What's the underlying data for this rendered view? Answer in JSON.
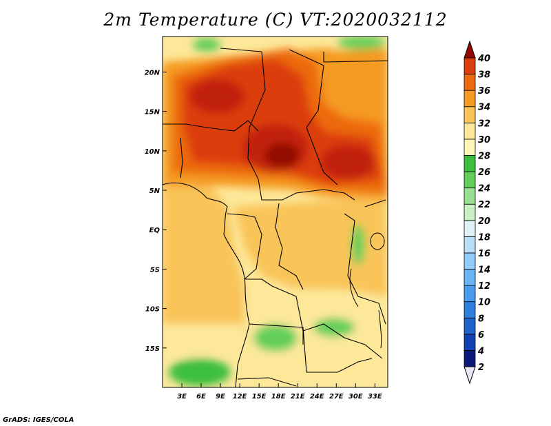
{
  "title": "2m Temperature (C) VT:2020032112",
  "credit": "GrADS: IGES/COLA",
  "map": {
    "lon_ticks": [
      "3E",
      "6E",
      "9E",
      "12E",
      "15E",
      "18E",
      "21E",
      "24E",
      "27E",
      "30E",
      "33E"
    ],
    "lat_ticks": [
      "20N",
      "15N",
      "10N",
      "5N",
      "EQ",
      "5S",
      "10S",
      "15S"
    ],
    "lon_range": [
      0,
      35
    ],
    "lat_range": [
      -20,
      24.5
    ]
  },
  "colorbar": {
    "levels": [
      2,
      4,
      6,
      8,
      10,
      12,
      14,
      16,
      18,
      20,
      22,
      24,
      26,
      28,
      30,
      32,
      34,
      36,
      38,
      40
    ],
    "colors": [
      "#0a1a7a",
      "#1141b3",
      "#1e62cc",
      "#2f7fe0",
      "#4a9cf0",
      "#6bb4f6",
      "#92cbfa",
      "#b8def8",
      "#dff2f8",
      "#c9f0c4",
      "#98e08f",
      "#63cf5a",
      "#3cbf3c",
      "#fff5b8",
      "#fde89a",
      "#f9c458",
      "#f59a23",
      "#ec6a10",
      "#dc3e0d",
      "#c1220b",
      "#930a05"
    ]
  }
}
